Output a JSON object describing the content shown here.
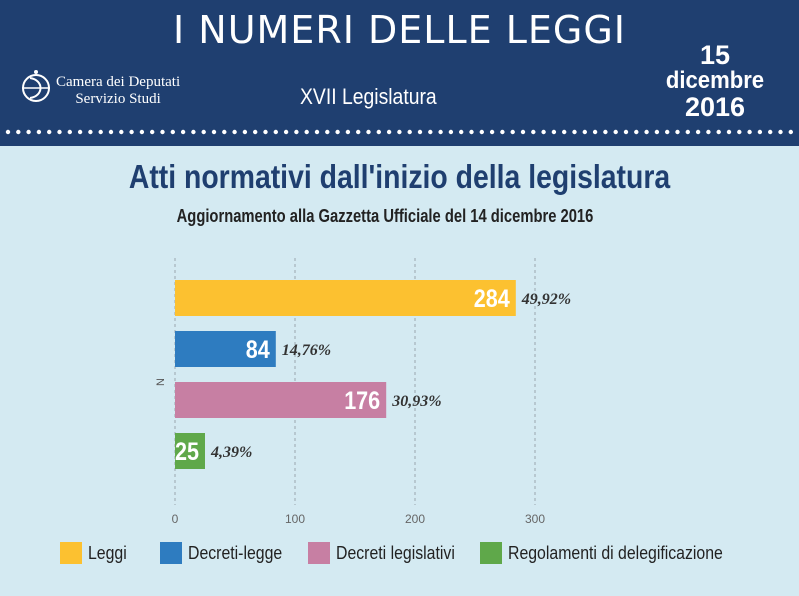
{
  "header": {
    "title": "I NUMERI DELLE LEGGI",
    "org_line1": "Camera dei Deputati",
    "org_line2": "Servizio Studi",
    "legislature": "XVII Legislatura",
    "date_day": "15",
    "date_month": "dicembre",
    "date_year": "2016"
  },
  "colors": {
    "header_bg": "#1f3f70",
    "page_bg": "#d4eaf2"
  },
  "chart_data": {
    "type": "bar",
    "orientation": "horizontal",
    "title": "Atti normativi dall'inizio della legislatura",
    "subtitle": "Aggiornamento alla Gazzetta Ufficiale del 14 dicembre 2016",
    "ylabel": "N",
    "xlim": [
      0,
      320
    ],
    "xticks": [
      0,
      100,
      200,
      300
    ],
    "categories": [
      "Leggi",
      "Decreti-legge",
      "Decreti legislativi",
      "Regolamenti di delegificazione"
    ],
    "values": [
      284,
      84,
      176,
      25
    ],
    "percent_labels": [
      "49,92%",
      "14,76%",
      "30,93%",
      "4,39%"
    ],
    "colors": [
      "#fcc130",
      "#2e7cc0",
      "#c77fa3",
      "#5fa84a"
    ],
    "legend_position": "bottom"
  }
}
